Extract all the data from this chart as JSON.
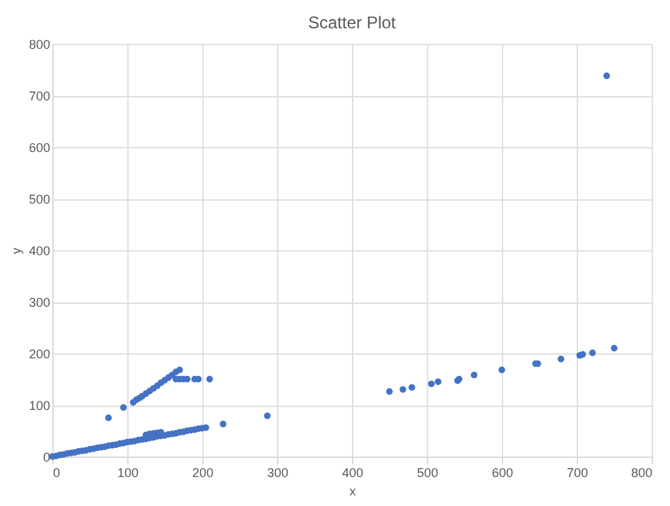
{
  "chart_data": {
    "type": "scatter",
    "title": "Scatter Plot",
    "xlabel": "x",
    "ylabel": "y",
    "series": [
      {
        "color": "#4472c4",
        "x": [
          0,
          5,
          10,
          15,
          20,
          25,
          30,
          35,
          40,
          45,
          50,
          55,
          60,
          65,
          70,
          75,
          80,
          85,
          90,
          95,
          100,
          105,
          110,
          115,
          120,
          125,
          130,
          135,
          140,
          145,
          150,
          155,
          160,
          165,
          170,
          175,
          180,
          185,
          190,
          195,
          200,
          205,
          125,
          130,
          135,
          140,
          145,
          75,
          95,
          108,
          112,
          116,
          120,
          125,
          130,
          135,
          140,
          145,
          150,
          155,
          160,
          165,
          170,
          165,
          170,
          175,
          180,
          190,
          195,
          210,
          228,
          287,
          450,
          468,
          480,
          506,
          515,
          541,
          543,
          563,
          600,
          645,
          648,
          679,
          704,
          708,
          721,
          750,
          740
        ],
        "values": [
          0,
          1,
          3,
          4,
          6,
          7,
          8,
          10,
          11,
          12,
          14,
          15,
          17,
          18,
          19,
          21,
          22,
          23,
          25,
          26,
          28,
          29,
          30,
          32,
          33,
          34,
          36,
          37,
          39,
          40,
          41,
          43,
          44,
          45,
          47,
          48,
          50,
          51,
          52,
          54,
          55,
          56,
          42,
          44,
          45,
          46,
          47,
          75,
          95,
          105,
          110,
          113,
          117,
          122,
          127,
          132,
          137,
          143,
          148,
          153,
          158,
          164,
          168,
          150,
          150,
          150,
          150,
          150,
          150,
          150,
          63,
          79,
          126,
          130,
          134,
          141,
          145,
          147,
          150,
          158,
          168,
          180,
          180,
          189,
          196,
          198,
          201,
          210,
          738
        ]
      }
    ],
    "xlim": [
      0,
      800
    ],
    "xticks": [
      0,
      100,
      200,
      300,
      400,
      500,
      600,
      700,
      800
    ],
    "ylim": [
      0,
      800
    ],
    "yticks": [
      0,
      100,
      200,
      300,
      400,
      500,
      600,
      700,
      800
    ],
    "grid": true,
    "marker": "circle"
  }
}
